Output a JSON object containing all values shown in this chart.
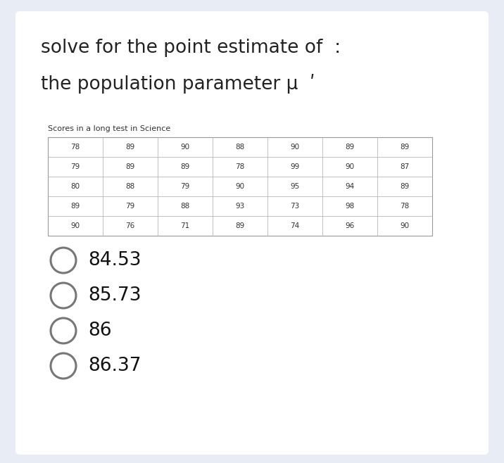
{
  "title_line1": "solve for the point estimate of  :",
  "title_line2": "the population parameter μ  ʹ",
  "table_title": "Scores in a long test in Science",
  "table_data": [
    [
      78,
      89,
      90,
      88,
      90,
      89,
      89
    ],
    [
      79,
      89,
      89,
      78,
      99,
      90,
      87
    ],
    [
      80,
      88,
      79,
      90,
      95,
      94,
      89
    ],
    [
      89,
      79,
      88,
      93,
      73,
      98,
      78
    ],
    [
      90,
      76,
      71,
      89,
      74,
      96,
      90
    ]
  ],
  "options": [
    "84.53",
    "85.73",
    "86",
    "86.37"
  ],
  "bg_color": "#e8ecf4",
  "card_color": "#ffffff",
  "title_color": "#222222",
  "table_text_color": "#333333",
  "option_text_color": "#111111",
  "circle_color": "#777777",
  "title_fontsize": 19,
  "table_title_fontsize": 8,
  "table_fontsize": 7.5,
  "option_fontsize": 19
}
